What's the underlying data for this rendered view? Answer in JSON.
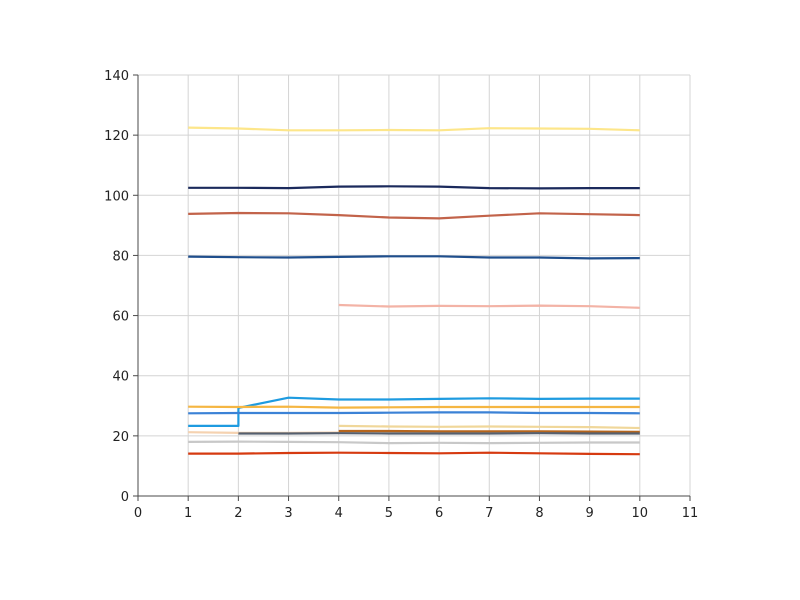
{
  "chart_data": {
    "type": "line",
    "xlim": [
      0,
      11
    ],
    "ylim": [
      0,
      140
    ],
    "x_ticks": [
      "0",
      "1",
      "2",
      "3",
      "4",
      "5",
      "6",
      "7",
      "8",
      "9",
      "10",
      "11"
    ],
    "y_ticks": [
      "0",
      "20",
      "40",
      "60",
      "80",
      "100",
      "120",
      "140"
    ],
    "grid": true,
    "legend": "none",
    "series": [
      {
        "color": "#fde68a",
        "points": [
          [
            1,
            122.5
          ],
          [
            2,
            122.2
          ],
          [
            3,
            121.6
          ],
          [
            4,
            121.6
          ],
          [
            5,
            121.7
          ],
          [
            6,
            121.6
          ],
          [
            7,
            122.3
          ],
          [
            8,
            122.2
          ],
          [
            9,
            122.1
          ],
          [
            10,
            121.6
          ]
        ]
      },
      {
        "color": "#1b2a5c",
        "points": [
          [
            1,
            102.5
          ],
          [
            2,
            102.5
          ],
          [
            3,
            102.4
          ],
          [
            4,
            102.9
          ],
          [
            5,
            103.0
          ],
          [
            6,
            102.9
          ],
          [
            7,
            102.4
          ],
          [
            8,
            102.3
          ],
          [
            9,
            102.4
          ],
          [
            10,
            102.4
          ]
        ]
      },
      {
        "color": "#c2634a",
        "points": [
          [
            1,
            93.8
          ],
          [
            2,
            94.1
          ],
          [
            3,
            94.0
          ],
          [
            4,
            93.4
          ],
          [
            5,
            92.6
          ],
          [
            6,
            92.3
          ],
          [
            7,
            93.2
          ],
          [
            8,
            94.0
          ],
          [
            9,
            93.7
          ],
          [
            10,
            93.4
          ]
        ]
      },
      {
        "color": "#1f4e8c",
        "points": [
          [
            1,
            79.6
          ],
          [
            2,
            79.4
          ],
          [
            3,
            79.3
          ],
          [
            4,
            79.5
          ],
          [
            5,
            79.7
          ],
          [
            6,
            79.7
          ],
          [
            7,
            79.3
          ],
          [
            8,
            79.3
          ],
          [
            9,
            79.0
          ],
          [
            10,
            79.1
          ]
        ]
      },
      {
        "color": "#f3b3a6",
        "points": [
          [
            4,
            63.5
          ],
          [
            5,
            63.0
          ],
          [
            6,
            63.2
          ],
          [
            7,
            63.1
          ],
          [
            8,
            63.3
          ],
          [
            9,
            63.1
          ],
          [
            10,
            62.6
          ]
        ]
      },
      {
        "color": "#1e9be0",
        "points": [
          [
            1,
            23.3
          ],
          [
            2,
            23.3
          ],
          [
            2,
            29.3
          ],
          [
            3,
            32.7
          ],
          [
            4,
            32.1
          ],
          [
            5,
            32.1
          ],
          [
            6,
            32.3
          ],
          [
            7,
            32.5
          ],
          [
            8,
            32.3
          ],
          [
            9,
            32.4
          ],
          [
            10,
            32.4
          ]
        ]
      },
      {
        "color": "#f5b642",
        "points": [
          [
            1,
            29.7
          ],
          [
            2,
            29.6
          ],
          [
            3,
            29.7
          ],
          [
            4,
            29.4
          ],
          [
            5,
            29.5
          ],
          [
            6,
            29.6
          ],
          [
            7,
            29.6
          ],
          [
            8,
            29.6
          ],
          [
            9,
            29.6
          ],
          [
            10,
            29.6
          ]
        ]
      },
      {
        "color": "#3b82d6",
        "points": [
          [
            1,
            27.5
          ],
          [
            2,
            27.6
          ],
          [
            3,
            27.6
          ],
          [
            4,
            27.6
          ],
          [
            5,
            27.7
          ],
          [
            6,
            27.8
          ],
          [
            7,
            27.8
          ],
          [
            8,
            27.6
          ],
          [
            9,
            27.6
          ],
          [
            10,
            27.5
          ]
        ]
      },
      {
        "color": "#f0d79a",
        "points": [
          [
            4,
            23.3
          ],
          [
            5,
            23.1
          ],
          [
            6,
            23.0
          ],
          [
            7,
            23.1
          ],
          [
            8,
            23.0
          ],
          [
            9,
            22.9
          ],
          [
            10,
            22.6
          ]
        ]
      },
      {
        "color": "#f5d2b0",
        "points": [
          [
            1,
            21.2
          ],
          [
            2,
            21.0
          ],
          [
            3,
            21.0
          ],
          [
            4,
            21.1
          ],
          [
            5,
            21.0
          ],
          [
            6,
            21.0
          ],
          [
            7,
            21.1
          ],
          [
            8,
            21.0
          ],
          [
            9,
            21.0
          ],
          [
            10,
            21.0
          ]
        ]
      },
      {
        "color": "#b5651d",
        "points": [
          [
            4,
            21.6
          ],
          [
            5,
            21.6
          ],
          [
            6,
            21.5
          ],
          [
            7,
            21.5
          ],
          [
            8,
            21.5
          ],
          [
            9,
            21.4
          ],
          [
            10,
            21.3
          ]
        ]
      },
      {
        "color": "#555f6e",
        "points": [
          [
            2,
            20.8
          ],
          [
            3,
            20.8
          ],
          [
            4,
            20.9
          ],
          [
            5,
            20.8
          ],
          [
            6,
            20.8
          ],
          [
            7,
            20.8
          ],
          [
            8,
            20.9
          ],
          [
            9,
            20.8
          ],
          [
            10,
            20.8
          ]
        ]
      },
      {
        "color": "#c8c8c8",
        "points": [
          [
            1,
            18.0
          ],
          [
            2,
            18.1
          ],
          [
            3,
            18.0
          ],
          [
            4,
            17.9
          ],
          [
            5,
            17.6
          ],
          [
            6,
            17.7
          ],
          [
            7,
            17.6
          ],
          [
            8,
            17.7
          ],
          [
            9,
            17.8
          ],
          [
            10,
            17.8
          ]
        ]
      },
      {
        "color": "#d63a10",
        "points": [
          [
            1,
            14.1
          ],
          [
            2,
            14.1
          ],
          [
            3,
            14.3
          ],
          [
            4,
            14.4
          ],
          [
            5,
            14.3
          ],
          [
            6,
            14.2
          ],
          [
            7,
            14.4
          ],
          [
            8,
            14.2
          ],
          [
            9,
            14.0
          ],
          [
            10,
            13.9
          ]
        ]
      }
    ]
  }
}
